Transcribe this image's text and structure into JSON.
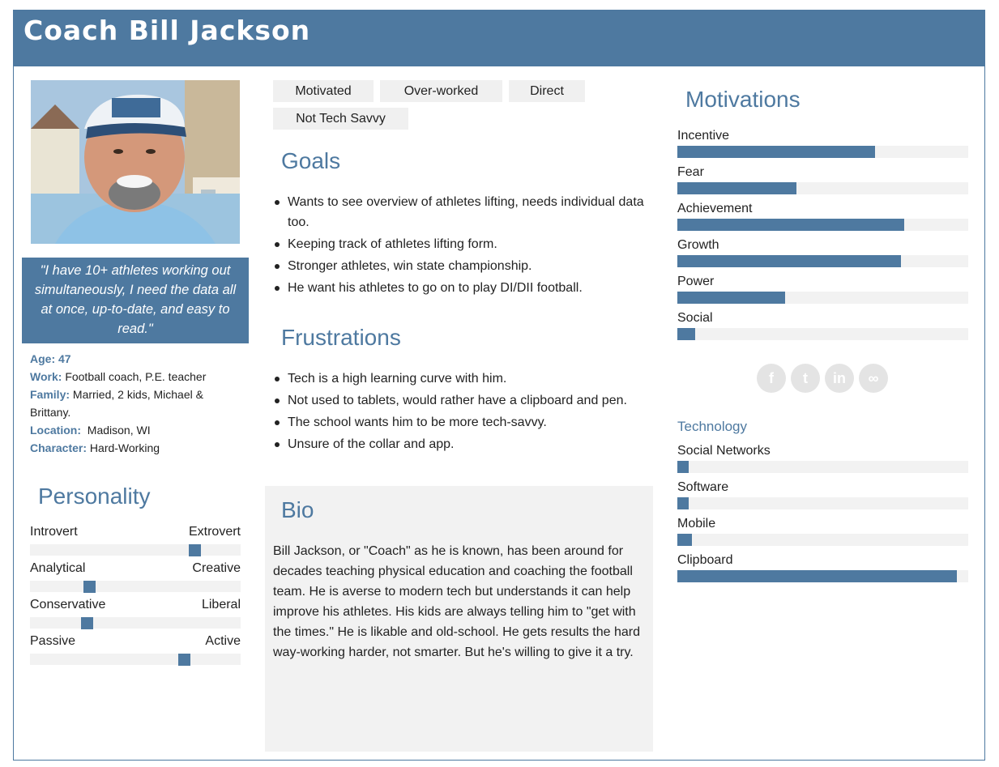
{
  "header": {
    "title": "Coach Bill Jackson"
  },
  "profile": {
    "quote": "\"I have 10+ athletes working out simultaneously, I need the data all at once, up-to-date, and easy to read.\"",
    "age_label": "Age:",
    "age_value": "47",
    "work_label": "Work:",
    "work_value": "Football coach, P.E. teacher",
    "family_label": "Family:",
    "family_value": "Married, 2 kids, Michael & Brittany.",
    "location_label": "Location:",
    "location_value": "Madison, WI",
    "character_label": "Character:",
    "character_value": "Hard-Working"
  },
  "personality": {
    "title": "Personality",
    "traits": [
      {
        "left": "Introvert",
        "right": "Extrovert",
        "value": 0.78
      },
      {
        "left": "Analytical",
        "right": "Creative",
        "value": 0.28
      },
      {
        "left": "Conservative",
        "right": "Liberal",
        "value": 0.27
      },
      {
        "left": "Passive",
        "right": "Active",
        "value": 0.73
      }
    ]
  },
  "tags": [
    "Motivated",
    "Over-worked",
    "Direct",
    "Not Tech Savvy"
  ],
  "goals": {
    "title": "Goals",
    "items": [
      "Wants to see overview of athletes lifting, needs individual data too.",
      "Keeping track of athletes lifting form.",
      "Stronger athletes, win state championship.",
      "He want his athletes to go on to play DI/DII football."
    ]
  },
  "frustrations": {
    "title": "Frustrations",
    "items": [
      "Tech is a high learning curve with him.",
      "Not used to tablets, would rather have a clipboard and pen.",
      "The school wants him to be more tech-savvy.",
      "Unsure of the collar and app."
    ]
  },
  "bio": {
    "title": "Bio",
    "text": "Bill Jackson, or \"Coach\" as he is known, has been around for decades teaching physical education and coaching the football team. He is averse to modern tech but understands it can help improve his athletes. His kids are always telling him to \"get with the times.\" He is likable and old-school. He gets results the hard way-working harder, not smarter. But he's willing to give it a try."
  },
  "motivations": {
    "title": "Motivations",
    "items": [
      {
        "label": "Incentive",
        "value": 0.68
      },
      {
        "label": "Fear",
        "value": 0.41
      },
      {
        "label": "Achievement",
        "value": 0.78
      },
      {
        "label": "Growth",
        "value": 0.77
      },
      {
        "label": "Power",
        "value": 0.37
      },
      {
        "label": "Social",
        "value": 0.06
      }
    ]
  },
  "social_icons": [
    {
      "name": "facebook-icon",
      "glyph": "f"
    },
    {
      "name": "twitter-icon",
      "glyph": "t"
    },
    {
      "name": "linkedin-icon",
      "glyph": "in"
    },
    {
      "name": "link-icon",
      "glyph": "∞"
    }
  ],
  "technology": {
    "title": "Technology",
    "items": [
      {
        "label": "Social Networks",
        "value": 0.04
      },
      {
        "label": "Software",
        "value": 0.04
      },
      {
        "label": "Mobile",
        "value": 0.05
      },
      {
        "label": "Clipboard",
        "value": 0.96
      }
    ]
  },
  "colors": {
    "accent": "#4e79a0",
    "track": "#f2f2f2",
    "panel": "#f2f2f2"
  }
}
